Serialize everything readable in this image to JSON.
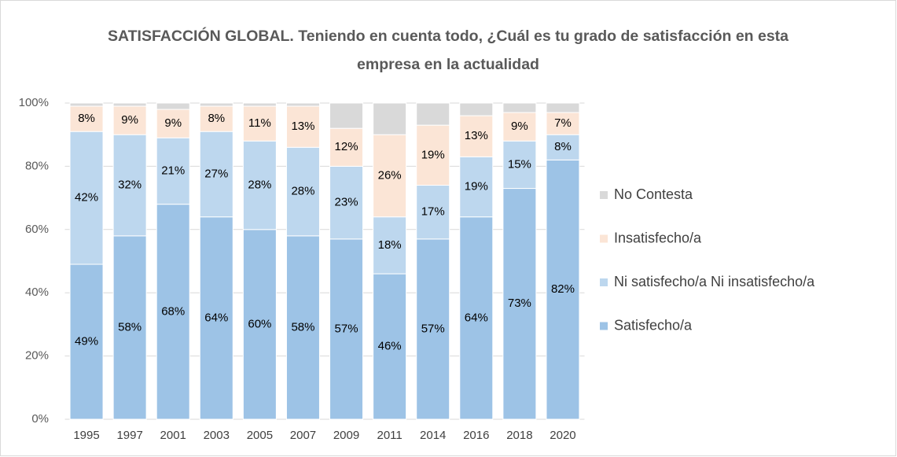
{
  "chart_data": {
    "type": "stacked_bar",
    "title": "SATISFACCIÓN GLOBAL. Teniendo en cuenta todo, ¿Cuál es tu grado de satisfacción en esta empresa en la actualidad",
    "categories": [
      "1995",
      "1997",
      "2001",
      "2003",
      "2005",
      "2007",
      "2009",
      "2011",
      "2014",
      "2016",
      "2018",
      "2020"
    ],
    "series": [
      {
        "name": "Satisfecho/a",
        "color": "#9dc3e6",
        "values": [
          49,
          58,
          68,
          64,
          60,
          58,
          57,
          46,
          57,
          64,
          73,
          82
        ],
        "value_labels": [
          "49%",
          "58%",
          "68%",
          "64%",
          "60%",
          "58%",
          "57%",
          "46%",
          "57%",
          "64%",
          "73%",
          "82%"
        ]
      },
      {
        "name": "Ni satisfecho/a Ni insatisfecho/a",
        "color": "#bdd7ee",
        "values": [
          42,
          32,
          21,
          27,
          28,
          28,
          23,
          18,
          17,
          19,
          15,
          8
        ],
        "value_labels": [
          "42%",
          "32%",
          "21%",
          "27%",
          "28%",
          "28%",
          "23%",
          "18%",
          "17%",
          "19%",
          "15%",
          "8%"
        ]
      },
      {
        "name": "Insatisfecho/a",
        "color": "#fbe5d6",
        "values": [
          8,
          9,
          9,
          8,
          11,
          13,
          12,
          26,
          19,
          13,
          9,
          7
        ],
        "value_labels": [
          "8%",
          "9%",
          "9%",
          "8%",
          "11%",
          "13%",
          "12%",
          "26%",
          "19%",
          "13%",
          "9%",
          "7%"
        ]
      },
      {
        "name": "No Contesta",
        "color": "#d9d9d9",
        "values": [
          1,
          1,
          2,
          1,
          1,
          1,
          8,
          10,
          7,
          4,
          3,
          3
        ]
      }
    ],
    "ylim": [
      0,
      100
    ],
    "yticks": [
      {
        "value": 0,
        "label": "0%"
      },
      {
        "value": 20,
        "label": "20%"
      },
      {
        "value": 40,
        "label": "40%"
      },
      {
        "value": 60,
        "label": "60%"
      },
      {
        "value": 80,
        "label": "80%"
      },
      {
        "value": 100,
        "label": "100%"
      }
    ],
    "grid": true,
    "legend": "right"
  }
}
